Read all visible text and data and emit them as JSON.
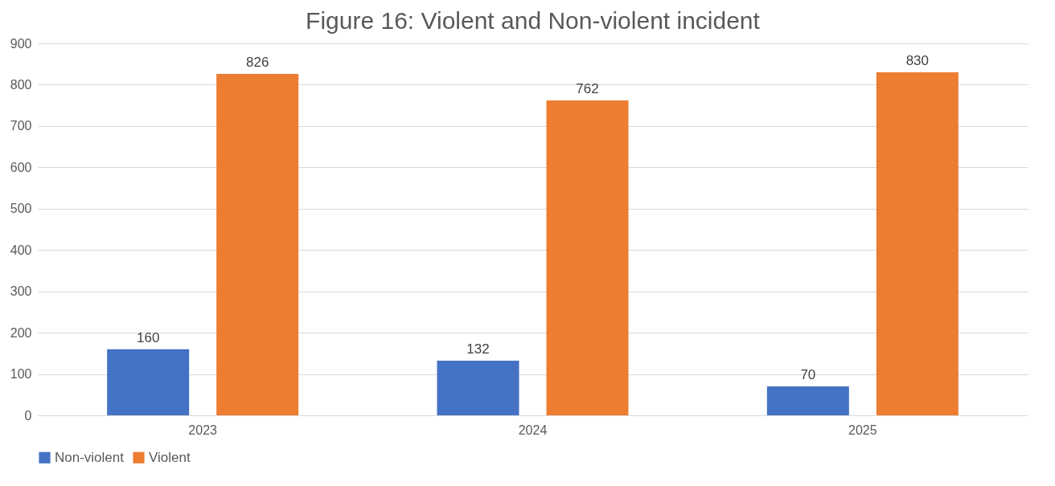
{
  "chart_data": {
    "type": "bar",
    "title": "Figure 16: Violent and Non-violent incident",
    "categories": [
      "2023",
      "2024",
      "2025"
    ],
    "series": [
      {
        "name": "Non-violent",
        "color": "#4472c4",
        "values": [
          160,
          132,
          70
        ]
      },
      {
        "name": "Violent",
        "color": "#ed7d31",
        "values": [
          826,
          762,
          830
        ]
      }
    ],
    "ylim": [
      0,
      900
    ],
    "yticks": [
      0,
      100,
      200,
      300,
      400,
      500,
      600,
      700,
      800,
      900
    ],
    "grid": "y",
    "legend": "bottom",
    "data_labels": true
  }
}
